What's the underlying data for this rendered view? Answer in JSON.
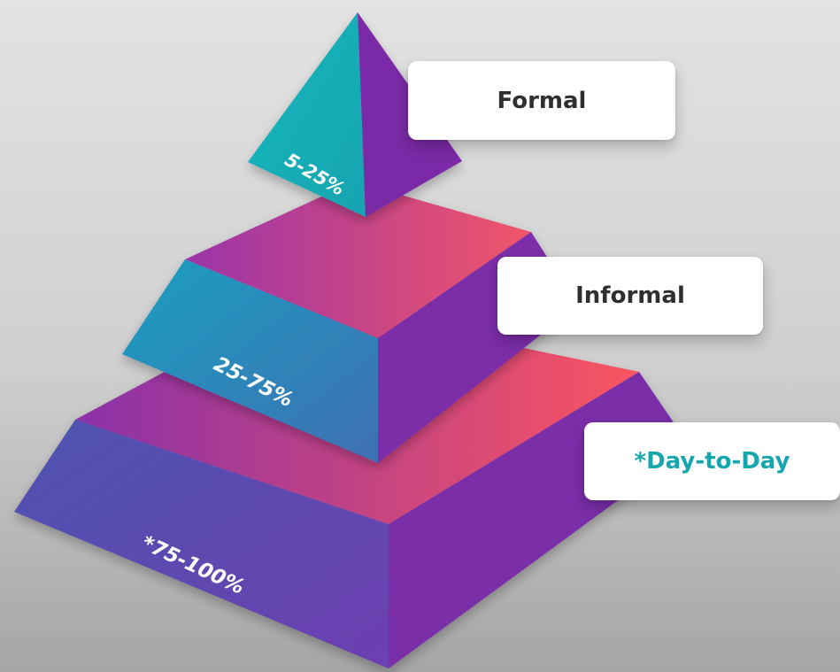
{
  "tiers": [
    {
      "percent": "5-25%",
      "label": "Formal",
      "colors": {
        "front": "#1aafb8",
        "side": "#7a2ca6"
      }
    },
    {
      "percent": "25-75%",
      "label": "Informal",
      "colors": {
        "top_start": "#9b34a8",
        "top_end": "#f05568",
        "front_start": "#1a9fc0",
        "front_end": "#3f6fb3",
        "side": "#7b2da8"
      }
    },
    {
      "percent": "*75-100%",
      "label": "*Day-to-Day",
      "label_color": "#16a6ad",
      "colors": {
        "top_start": "#8a31a8",
        "top_end": "#fa5560",
        "front_start": "#4d54b0",
        "front_end": "#6d3fb0",
        "side": "#7a2da8"
      }
    }
  ]
}
